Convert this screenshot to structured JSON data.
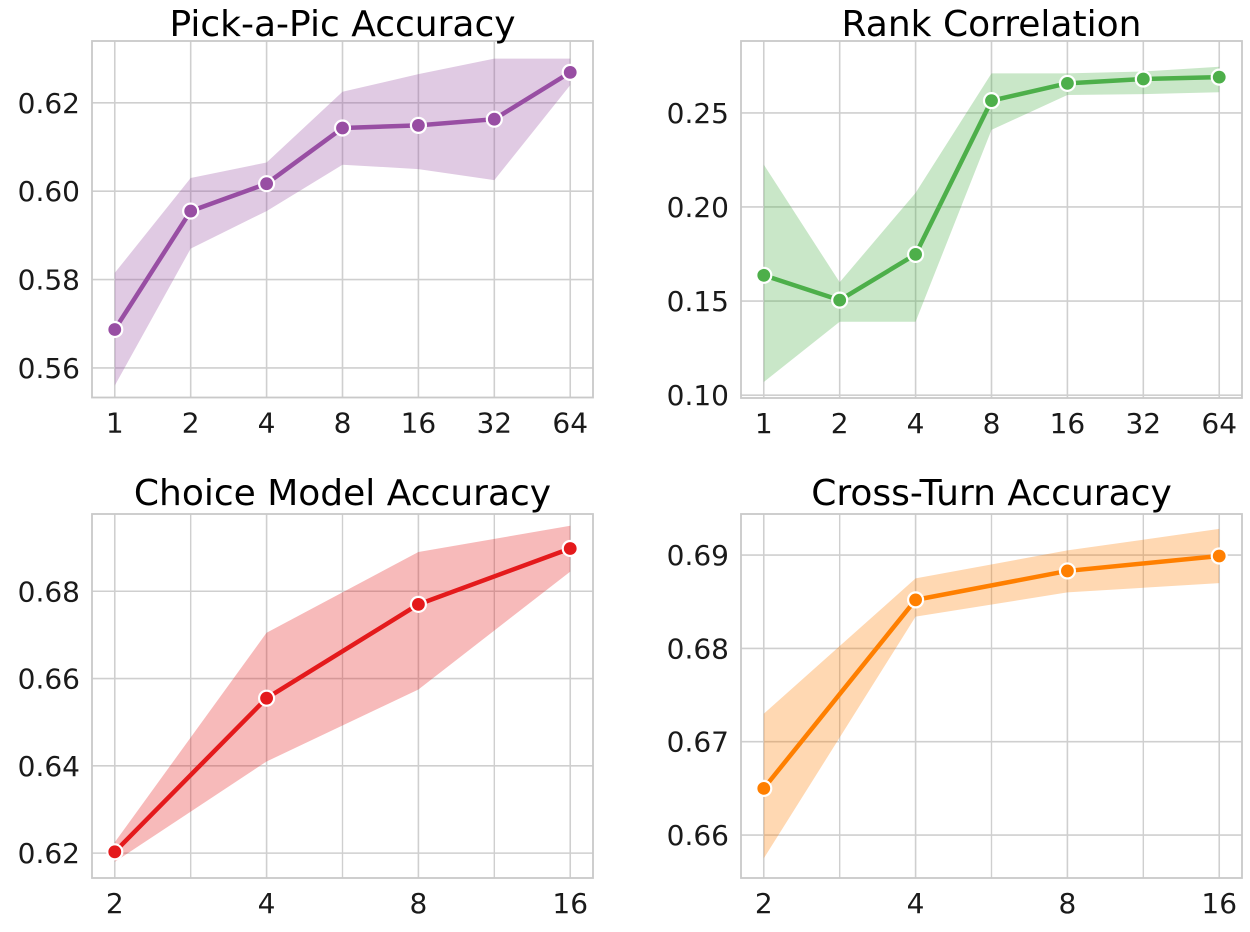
{
  "figure": {
    "background": "#ffffff",
    "grid_color": "#cfcfcf",
    "spine_color": "#c9c9c9",
    "marker_edge_color": "#ffffff"
  },
  "chart_data": [
    {
      "type": "line",
      "title": "Pick-a-Pic Accuracy",
      "color": "#984ea3",
      "band_opacity": 0.3,
      "x_scale": "log2",
      "categories": [
        "1",
        "2",
        "4",
        "8",
        "16",
        "32",
        "64"
      ],
      "x": [
        1,
        2,
        4,
        8,
        16,
        32,
        64
      ],
      "values": [
        0.5687,
        0.5955,
        0.6017,
        0.6143,
        0.6149,
        0.6163,
        0.6269
      ],
      "band_low": [
        0.556,
        0.587,
        0.5955,
        0.606,
        0.605,
        0.6025,
        0.624
      ],
      "band_high": [
        0.5815,
        0.603,
        0.6065,
        0.6225,
        0.6265,
        0.63,
        0.63
      ],
      "ylim": [
        0.5533,
        0.634
      ],
      "yticks": [
        0.56,
        0.58,
        0.6,
        0.62
      ],
      "ytick_labels": [
        "0.56",
        "0.58",
        "0.60",
        "0.62"
      ],
      "grid": true,
      "minor_x_grid": false,
      "legend": "none"
    },
    {
      "type": "line",
      "title": "Rank Correlation",
      "color": "#4daf4a",
      "band_opacity": 0.3,
      "x_scale": "log2",
      "categories": [
        "1",
        "2",
        "4",
        "8",
        "16",
        "32",
        "64"
      ],
      "x": [
        1,
        2,
        4,
        8,
        16,
        32,
        64
      ],
      "values": [
        0.1637,
        0.1505,
        0.1748,
        0.2565,
        0.2657,
        0.268,
        0.269
      ],
      "band_low": [
        0.107,
        0.139,
        0.139,
        0.241,
        0.2595,
        0.26,
        0.261
      ],
      "band_high": [
        0.2225,
        0.16,
        0.2075,
        0.271,
        0.271,
        0.272,
        0.2745
      ],
      "ylim": [
        0.0985,
        0.2882
      ],
      "yticks": [
        0.1,
        0.15,
        0.2,
        0.25
      ],
      "ytick_labels": [
        "0.10",
        "0.15",
        "0.20",
        "0.25"
      ],
      "grid": true,
      "minor_x_grid": false,
      "legend": "none"
    },
    {
      "type": "line",
      "title": "Choice Model Accuracy",
      "color": "#e41a1c",
      "band_opacity": 0.3,
      "x_scale": "log2",
      "categories": [
        "2",
        "4",
        "8",
        "16"
      ],
      "x": [
        2,
        4,
        8,
        16
      ],
      "values": [
        0.6203,
        0.6555,
        0.677,
        0.6898
      ],
      "band_low": [
        0.618,
        0.641,
        0.6575,
        0.6845
      ],
      "band_high": [
        0.6225,
        0.6705,
        0.689,
        0.695
      ],
      "ylim": [
        0.6143,
        0.6977
      ],
      "yticks": [
        0.62,
        0.64,
        0.66,
        0.68
      ],
      "ytick_labels": [
        "0.62",
        "0.64",
        "0.66",
        "0.68"
      ],
      "grid": true,
      "minor_x_grid": true,
      "legend": "none"
    },
    {
      "type": "line",
      "title": "Cross-Turn Accuracy",
      "color": "#ff7f00",
      "band_opacity": 0.3,
      "x_scale": "log2",
      "categories": [
        "2",
        "4",
        "8",
        "16"
      ],
      "x": [
        2,
        4,
        8,
        16
      ],
      "values": [
        0.665,
        0.6852,
        0.6883,
        0.6899
      ],
      "band_low": [
        0.6575,
        0.6834,
        0.686,
        0.687
      ],
      "band_high": [
        0.673,
        0.6875,
        0.6905,
        0.6928
      ],
      "ylim": [
        0.6554,
        0.6944
      ],
      "yticks": [
        0.66,
        0.67,
        0.68,
        0.69
      ],
      "ytick_labels": [
        "0.66",
        "0.67",
        "0.68",
        "0.69"
      ],
      "grid": true,
      "minor_x_grid": true,
      "legend": "none"
    }
  ]
}
